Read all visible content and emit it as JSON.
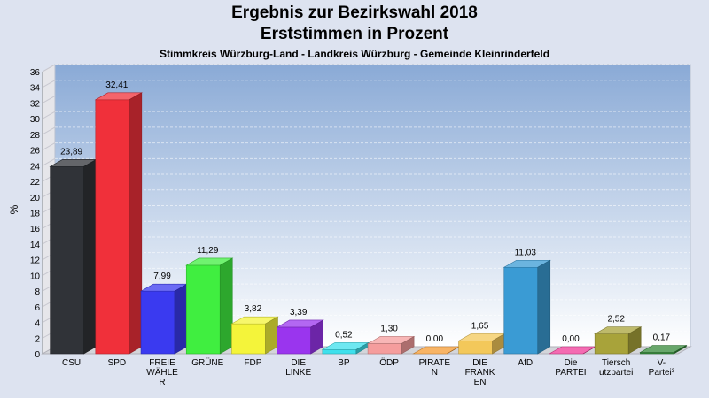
{
  "chart_data": {
    "type": "bar",
    "title": "Ergebnis zur Bezirkswahl 2018",
    "subtitle": "Erststimmen in Prozent",
    "caption": "Stimmkreis Würzburg-Land - Landkreis Würzburg - Gemeinde Kleinrinderfeld",
    "ylabel": "%",
    "ylim": [
      0,
      36
    ],
    "yticks": [
      "0",
      "2",
      "4",
      "6",
      "8",
      "10",
      "12",
      "14",
      "16",
      "18",
      "20",
      "22",
      "24",
      "26",
      "28",
      "30",
      "32",
      "34",
      "36"
    ],
    "grid": true,
    "categories": [
      [
        "CSU"
      ],
      [
        "SPD"
      ],
      [
        "FREIE",
        "WÄHLE",
        "R"
      ],
      [
        "GRÜNE"
      ],
      [
        "FDP"
      ],
      [
        "DIE",
        "LINKE"
      ],
      [
        "BP"
      ],
      [
        "ÖDP"
      ],
      [
        "PIRATE",
        "N"
      ],
      [
        "DIE",
        "FRANK",
        "EN"
      ],
      [
        "AfD"
      ],
      [
        "Die",
        "PARTEI"
      ],
      [
        "Tiersch",
        "utzpartei"
      ],
      [
        "V-",
        "Partei³"
      ]
    ],
    "values": [
      23.89,
      32.41,
      7.99,
      11.29,
      3.82,
      3.39,
      0.52,
      1.3,
      0.0,
      1.65,
      11.03,
      0.0,
      2.52,
      0.17
    ],
    "labels": [
      "23,89",
      "32,41",
      "7,99",
      "11,29",
      "3,82",
      "3,39",
      "0,52",
      "1,30",
      "0,00",
      "1,65",
      "11,03",
      "0,00",
      "2,52",
      "0,17"
    ],
    "colors": [
      "#303338",
      "#f0303a",
      "#3a3af0",
      "#40ee40",
      "#f4f43a",
      "#9a35ee",
      "#3ee0ec",
      "#f59d9d",
      "#f59b32",
      "#f3c85a",
      "#3a9bd4",
      "#f03a98",
      "#a8a33a",
      "#35893a"
    ]
  }
}
